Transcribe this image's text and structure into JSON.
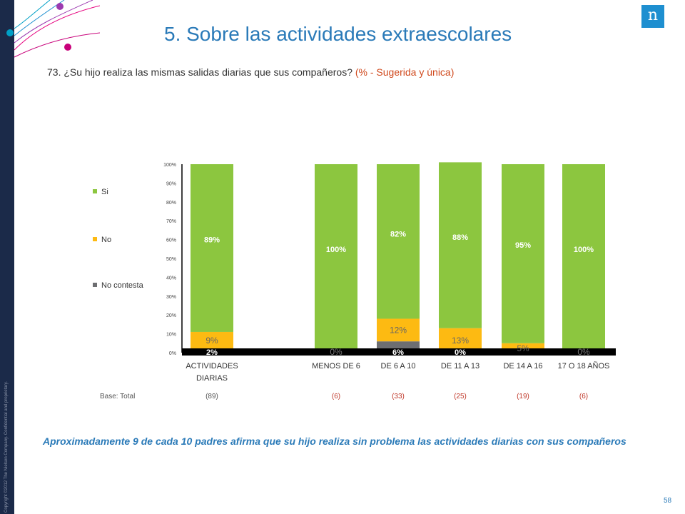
{
  "header": {
    "title": "5. Sobre las actividades extraescolares",
    "logo_letter": "n"
  },
  "question": {
    "text": "73. ¿Su hijo realiza las mismas salidas diarias que sus compañeros?",
    "tag": "(% - Sugerida y única)"
  },
  "copyright": "Copyright ©2012 The Nielsen Company. Confidential and proprietary.",
  "summary": "Aproximadamente 9 de cada 10 padres afirma que su hijo realiza sin problema las actividades diarias con sus compañeros",
  "page_number": "58",
  "colors": {
    "si": "#8cc63f",
    "no": "#fdba12",
    "no_contesta": "#6d6e71",
    "title": "#2a7ab8",
    "base_red": "#c0392b",
    "band": "#1b2a49"
  },
  "chart_data": {
    "type": "bar",
    "stacked": true,
    "categories": [
      "ACTIVIDADES DIARIAS",
      "MENOS DE 6",
      "DE 6 A 10",
      "DE 11 A 13",
      "DE 14 A 16",
      "17 O 18 AÑOS"
    ],
    "series": [
      {
        "name": "No contesta",
        "values": [
          2,
          0,
          6,
          0,
          0,
          0
        ],
        "labels": [
          "2%",
          "0%",
          "6%",
          "0%",
          "",
          "0%"
        ]
      },
      {
        "name": "No",
        "values": [
          9,
          0,
          12,
          13,
          5,
          0
        ],
        "labels": [
          "9%",
          "",
          "12%",
          "13%",
          "5%",
          ""
        ]
      },
      {
        "name": "Si",
        "values": [
          89,
          100,
          82,
          88,
          95,
          100
        ],
        "labels": [
          "89%",
          "100%",
          "82%",
          "88%",
          "95%",
          "100%"
        ]
      }
    ],
    "legend_order": [
      "Si",
      "No",
      "No contesta"
    ],
    "yticks": [
      "0%",
      "10%",
      "20%",
      "30%",
      "40%",
      "50%",
      "60%",
      "70%",
      "80%",
      "90%",
      "100%"
    ],
    "ylim": [
      0,
      100
    ],
    "legend_position": "left",
    "base_label": "Base: Total",
    "bases": [
      "(89)",
      "(6)",
      "(33)",
      "(25)",
      "(19)",
      "(6)"
    ]
  }
}
